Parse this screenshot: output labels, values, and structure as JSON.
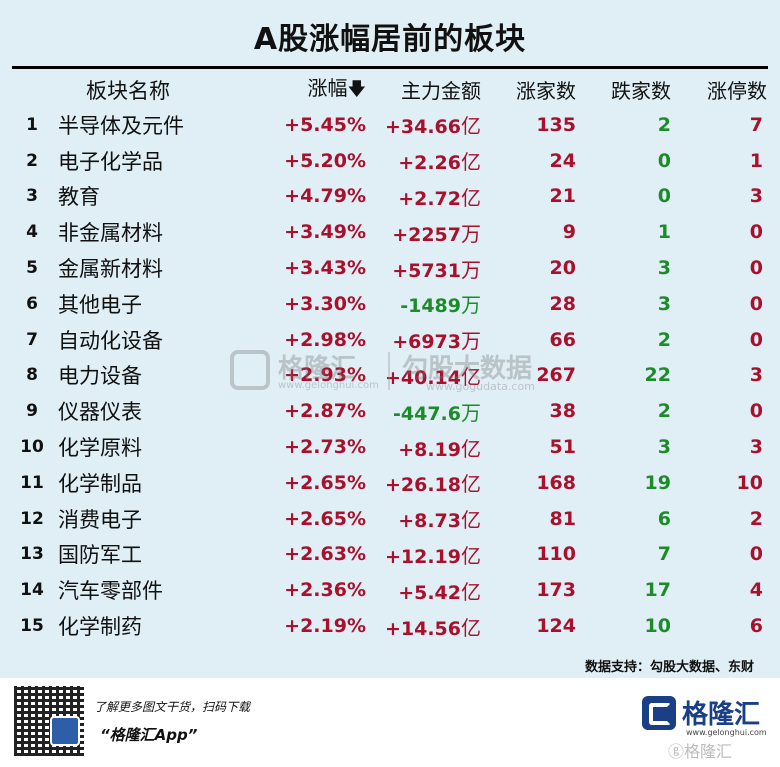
{
  "title": "A股涨幅居前的板块",
  "headers": {
    "name": "板块名称",
    "pct": "涨幅",
    "pct_sort_icon": "arrow-down-icon",
    "amount": "主力金额",
    "up": "涨家数",
    "down": "跌家数",
    "limit_up": "涨停数"
  },
  "rows": [
    {
      "rank": "1",
      "name": "半导体及元件",
      "pct": "+5.45%",
      "amount": "+34.66",
      "unit": "亿",
      "amount_sign": "pos",
      "up": "135",
      "down": "2",
      "limit_up": "7"
    },
    {
      "rank": "2",
      "name": "电子化学品",
      "pct": "+5.20%",
      "amount": "+2.26",
      "unit": "亿",
      "amount_sign": "pos",
      "up": "24",
      "down": "0",
      "limit_up": "1"
    },
    {
      "rank": "3",
      "name": "教育",
      "pct": "+4.79%",
      "amount": "+2.72",
      "unit": "亿",
      "amount_sign": "pos",
      "up": "21",
      "down": "0",
      "limit_up": "3"
    },
    {
      "rank": "4",
      "name": "非金属材料",
      "pct": "+3.49%",
      "amount": "+2257",
      "unit": "万",
      "amount_sign": "pos",
      "up": "9",
      "down": "1",
      "limit_up": "0"
    },
    {
      "rank": "5",
      "name": "金属新材料",
      "pct": "+3.43%",
      "amount": "+5731",
      "unit": "万",
      "amount_sign": "pos",
      "up": "20",
      "down": "3",
      "limit_up": "0"
    },
    {
      "rank": "6",
      "name": "其他电子",
      "pct": "+3.30%",
      "amount": "-1489",
      "unit": "万",
      "amount_sign": "neg",
      "up": "28",
      "down": "3",
      "limit_up": "0"
    },
    {
      "rank": "7",
      "name": "自动化设备",
      "pct": "+2.98%",
      "amount": "+6973",
      "unit": "万",
      "amount_sign": "pos",
      "up": "66",
      "down": "2",
      "limit_up": "0"
    },
    {
      "rank": "8",
      "name": "电力设备",
      "pct": "+2.93%",
      "amount": "+40.14",
      "unit": "亿",
      "amount_sign": "pos",
      "up": "267",
      "down": "22",
      "limit_up": "3"
    },
    {
      "rank": "9",
      "name": "仪器仪表",
      "pct": "+2.87%",
      "amount": "-447.6",
      "unit": "万",
      "amount_sign": "neg",
      "up": "38",
      "down": "2",
      "limit_up": "0"
    },
    {
      "rank": "10",
      "name": "化学原料",
      "pct": "+2.73%",
      "amount": "+8.19",
      "unit": "亿",
      "amount_sign": "pos",
      "up": "51",
      "down": "3",
      "limit_up": "3"
    },
    {
      "rank": "11",
      "name": "化学制品",
      "pct": "+2.65%",
      "amount": "+26.18",
      "unit": "亿",
      "amount_sign": "pos",
      "up": "168",
      "down": "19",
      "limit_up": "10"
    },
    {
      "rank": "12",
      "name": "消费电子",
      "pct": "+2.65%",
      "amount": "+8.73",
      "unit": "亿",
      "amount_sign": "pos",
      "up": "81",
      "down": "6",
      "limit_up": "2"
    },
    {
      "rank": "13",
      "name": "国防军工",
      "pct": "+2.63%",
      "amount": "+12.19",
      "unit": "亿",
      "amount_sign": "pos",
      "up": "110",
      "down": "7",
      "limit_up": "0"
    },
    {
      "rank": "14",
      "name": "汽车零部件",
      "pct": "+2.36%",
      "amount": "+5.42",
      "unit": "亿",
      "amount_sign": "pos",
      "up": "173",
      "down": "17",
      "limit_up": "4"
    },
    {
      "rank": "15",
      "name": "化学制药",
      "pct": "+2.19%",
      "amount": "+14.56",
      "unit": "亿",
      "amount_sign": "pos",
      "up": "124",
      "down": "10",
      "limit_up": "6"
    }
  ],
  "watermark": {
    "brand": "格隆汇",
    "brand_site": "www.gelonghui.com",
    "data_brand": "勾股大数据",
    "data_site": "www.gogudata.com"
  },
  "source": "数据支持：勾股大数据、东财",
  "footer": {
    "promo_line1": "了解更多图文干货，扫码下载",
    "promo_line2": "“格隆汇App”",
    "brand_name": "格隆汇",
    "brand_site": "www.gelonghui.com",
    "brand_watermark": "ⓖ格隆汇"
  },
  "colors": {
    "background": "#dfeff5",
    "positive": "#a8102c",
    "negative": "#1e8a2a",
    "brand": "#1b3f86"
  }
}
